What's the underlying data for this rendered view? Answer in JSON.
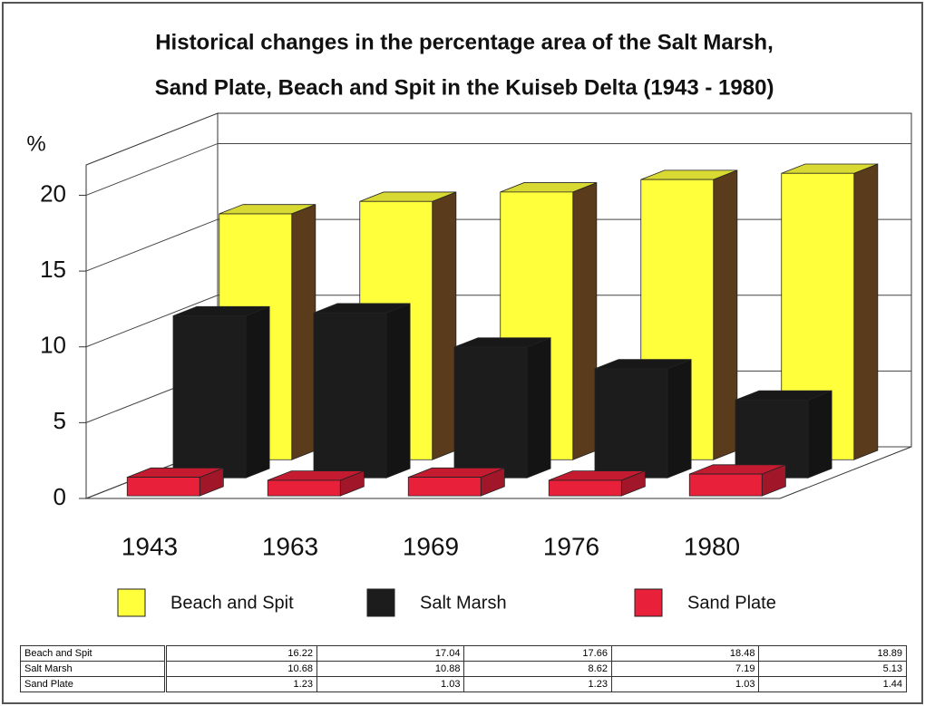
{
  "chart_data": {
    "type": "bar3d",
    "title": [
      "Historical changes in the percentage area of the Salt Marsh,",
      "Sand Plate, Beach and Spit in the Kuiseb Delta (1943 - 1980)"
    ],
    "y_label": "%",
    "categories": [
      "1943",
      "1963",
      "1969",
      "1976",
      "1980"
    ],
    "series": [
      {
        "name": "Beach and Spit",
        "color": "#ffff3c",
        "values": [
          16.22,
          17.04,
          17.66,
          18.48,
          18.89
        ]
      },
      {
        "name": "Salt Marsh",
        "color": "#1c1c1c",
        "values": [
          10.68,
          10.88,
          8.62,
          7.19,
          5.13
        ]
      },
      {
        "name": "Sand Plate",
        "color": "#e8203a",
        "values": [
          1.23,
          1.03,
          1.23,
          1.03,
          1.44
        ]
      }
    ],
    "ylim": [
      0,
      22
    ],
    "yticks": [
      0,
      5,
      10,
      15,
      20
    ],
    "grid": true,
    "legend": "bottom"
  }
}
